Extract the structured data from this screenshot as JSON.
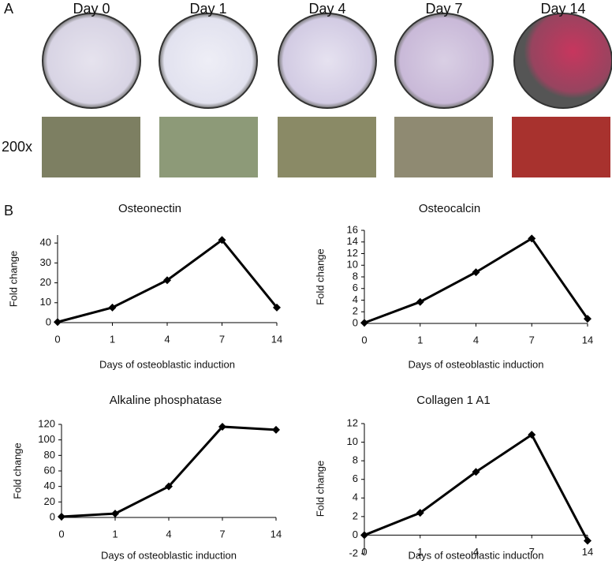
{
  "panel_labels": [
    "A",
    "B"
  ],
  "images": {
    "days": [
      "Day 0",
      "Day 1",
      "Day 4",
      "Day 7",
      "Day 14"
    ],
    "magnification": "200x"
  },
  "chart_data": [
    {
      "type": "line",
      "title": "Osteonectin",
      "x_label": "Days of osteoblastic induction",
      "y_label": "Fold change",
      "categories": [
        "0",
        "1",
        "4",
        "7",
        "14"
      ],
      "values": [
        0.3,
        7.6,
        21.3,
        41.5,
        7.6
      ],
      "color": "#000000",
      "ylim": [
        0,
        44
      ],
      "yticks": [
        0,
        10,
        20,
        30,
        40
      ]
    },
    {
      "type": "line",
      "title": "Osteocalcin",
      "x_label": "Days of osteoblastic induction",
      "y_label": "Fold change",
      "categories": [
        "0",
        "1",
        "4",
        "7",
        "14"
      ],
      "values": [
        0.1,
        3.7,
        8.8,
        14.6,
        0.8
      ],
      "color": "#000000",
      "ylim": [
        0,
        16
      ],
      "yticks": [
        0,
        2,
        4,
        6,
        8,
        10,
        12,
        14,
        16
      ]
    },
    {
      "type": "line",
      "title": "Alkaline phosphatase",
      "x_label": "Days of osteoblastic induction",
      "y_label": "Fold change",
      "categories": [
        "0",
        "1",
        "4",
        "7",
        "14"
      ],
      "values": [
        1,
        5,
        40,
        117,
        113
      ],
      "color": "#000000",
      "ylim": [
        0,
        120
      ],
      "yticks": [
        0,
        20,
        40,
        60,
        80,
        100,
        120
      ]
    },
    {
      "type": "line",
      "title": "Collagen 1 A1",
      "x_label": "Days of osteoblastic induction",
      "y_label": "Fold change",
      "categories": [
        "0",
        "1",
        "4",
        "7",
        "14"
      ],
      "values": [
        0,
        2.4,
        6.8,
        10.8,
        -0.6
      ],
      "color": "#000000",
      "ylim": [
        -2,
        12
      ],
      "yticks": [
        -2,
        0,
        2,
        4,
        6,
        8,
        10,
        12
      ]
    }
  ]
}
